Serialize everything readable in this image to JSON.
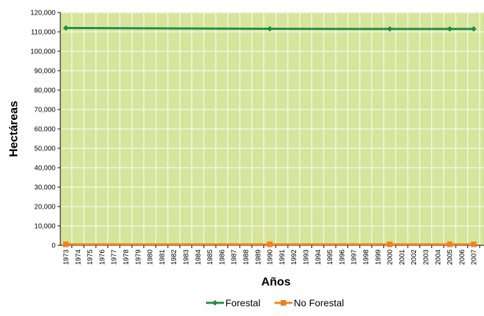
{
  "chart_data": {
    "type": "line",
    "title": "",
    "xlabel": "Años",
    "ylabel": "Hectáreas",
    "x": [
      "1973",
      "1974",
      "1975",
      "1976",
      "1977",
      "1978",
      "1979",
      "1980",
      "1981",
      "1982",
      "1983",
      "1984",
      "1985",
      "1986",
      "1987",
      "1988",
      "1989",
      "1990",
      "1991",
      "1992",
      "1993",
      "1994",
      "1995",
      "1996",
      "1997",
      "1998",
      "1999",
      "2000",
      "2001",
      "2002",
      "2003",
      "2004",
      "2005",
      "2006",
      "2007"
    ],
    "y_ticks": [
      "0",
      "10,000",
      "20,000",
      "30,000",
      "40,000",
      "50,000",
      "60,000",
      "70,000",
      "80,000",
      "90,000",
      "100,000",
      "110,000",
      "120,000"
    ],
    "ylim": [
      0,
      120000
    ],
    "grid": true,
    "legend_position": "bottom",
    "colors": {
      "plot_background": "#d6e59b",
      "grid": "#ffffff",
      "forestal": "#1e8c46",
      "no_forestal": "#f0821e"
    },
    "series": [
      {
        "name": "Forestal",
        "marker": "diamond",
        "points": [
          {
            "x": "1973",
            "y": 112000
          },
          {
            "x": "1990",
            "y": 111600
          },
          {
            "x": "2000",
            "y": 111500
          },
          {
            "x": "2005",
            "y": 111500
          },
          {
            "x": "2007",
            "y": 111500
          }
        ]
      },
      {
        "name": "No Forestal",
        "marker": "square",
        "points": [
          {
            "x": "1973",
            "y": 500
          },
          {
            "x": "1990",
            "y": 500
          },
          {
            "x": "2000",
            "y": 500
          },
          {
            "x": "2005",
            "y": 500
          },
          {
            "x": "2007",
            "y": 500
          }
        ]
      }
    ]
  }
}
